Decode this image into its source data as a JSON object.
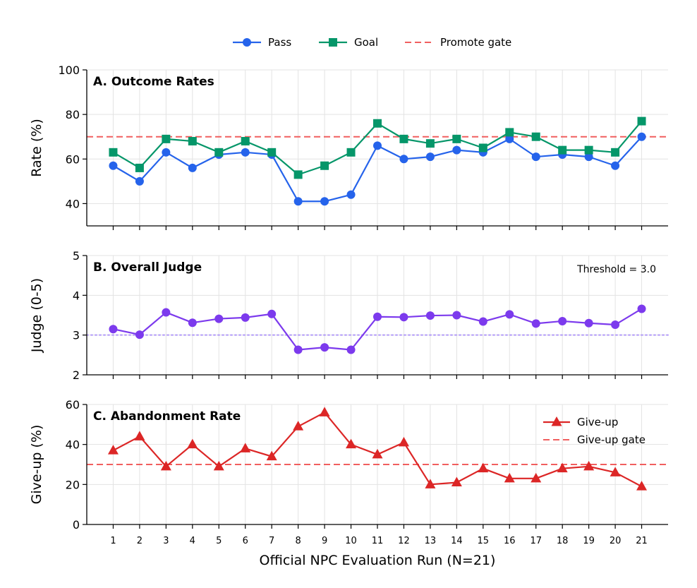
{
  "chart_data": [
    {
      "type": "line",
      "title": "A. Outcome Rates",
      "ylabel": "Rate (%)",
      "ylim": [
        30,
        100
      ],
      "yticks": [
        40,
        60,
        80,
        100
      ],
      "x": [
        1,
        2,
        3,
        4,
        5,
        6,
        7,
        8,
        9,
        10,
        11,
        12,
        13,
        14,
        15,
        16,
        17,
        18,
        19,
        20,
        21
      ],
      "series": [
        {
          "name": "Pass",
          "color": "#2563eb",
          "marker": "circle",
          "values": [
            57,
            50,
            63,
            56,
            62,
            63,
            62,
            41,
            41,
            44,
            66,
            60,
            61,
            64,
            63,
            69,
            61,
            62,
            61,
            57,
            70
          ]
        },
        {
          "name": "Goal",
          "color": "#059669",
          "marker": "square",
          "values": [
            63,
            56,
            69,
            68,
            63,
            68,
            63,
            53,
            57,
            63,
            76,
            69,
            67,
            69,
            65,
            72,
            70,
            64,
            64,
            63,
            77
          ]
        }
      ],
      "reference_line": {
        "name": "Promote gate",
        "value": 70,
        "color": "#ef4444",
        "style": "dashed"
      },
      "legend": "top-center",
      "grid": true
    },
    {
      "type": "line",
      "title": "B. Overall Judge",
      "ylabel": "Judge (0-5)",
      "ylim": [
        2,
        5
      ],
      "yticks": [
        2,
        3,
        4,
        5
      ],
      "x": [
        1,
        2,
        3,
        4,
        5,
        6,
        7,
        8,
        9,
        10,
        11,
        12,
        13,
        14,
        15,
        16,
        17,
        18,
        19,
        20,
        21
      ],
      "series": [
        {
          "color": "#7c3aed",
          "marker": "circle",
          "values": [
            3.15,
            3.01,
            3.57,
            3.31,
            3.41,
            3.44,
            3.53,
            2.63,
            2.69,
            2.63,
            3.46,
            3.45,
            3.49,
            3.5,
            3.34,
            3.52,
            3.29,
            3.35,
            3.3,
            3.26,
            3.66
          ]
        }
      ],
      "reference_line": {
        "value": 3.0,
        "color": "#a78bfa",
        "style": "dotted"
      },
      "annotation": "Threshold = 3.0",
      "grid": true
    },
    {
      "type": "line",
      "title": "C. Abandonment Rate",
      "ylabel": "Give-up (%)",
      "xlabel": "Official NPC Evaluation Run (N=21)",
      "ylim": [
        0,
        60
      ],
      "yticks": [
        0,
        20,
        40,
        60
      ],
      "x": [
        1,
        2,
        3,
        4,
        5,
        6,
        7,
        8,
        9,
        10,
        11,
        12,
        13,
        14,
        15,
        16,
        17,
        18,
        19,
        20,
        21
      ],
      "series": [
        {
          "name": "Give-up",
          "color": "#dc2626",
          "marker": "triangle",
          "values": [
            37,
            44,
            29,
            40,
            29,
            38,
            34,
            49,
            56,
            40,
            35,
            41,
            20,
            21,
            28,
            23,
            23,
            28,
            29,
            26,
            19
          ]
        }
      ],
      "reference_line": {
        "name": "Give-up gate",
        "value": 30,
        "color": "#ef4444",
        "style": "dashed"
      },
      "legend": "top-right",
      "grid": true
    }
  ]
}
